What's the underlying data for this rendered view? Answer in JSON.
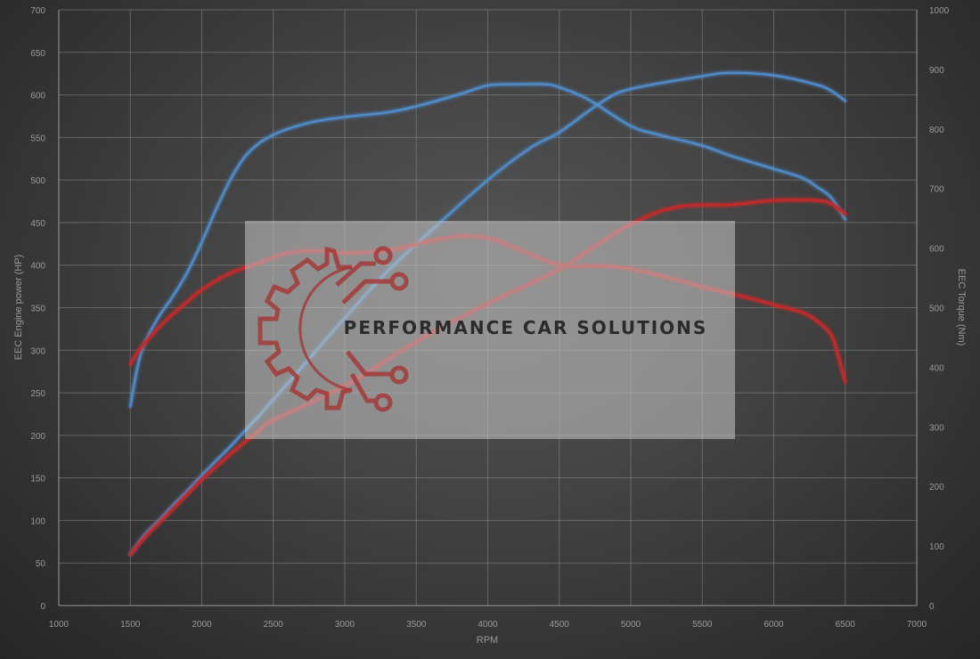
{
  "chart_data": {
    "type": "line",
    "xlabel": "RPM",
    "ylabel_left": "EEC Engine power (HP)",
    "ylabel_right": "EEC Torque (Nm)",
    "xlim": [
      1000,
      7000
    ],
    "ylim_left": [
      0,
      700
    ],
    "ylim_right": [
      0,
      1000
    ],
    "x_ticks": [
      "1000",
      "1500",
      "2000",
      "2500",
      "3000",
      "3500",
      "4000",
      "4500",
      "5000",
      "5500",
      "6000",
      "6500",
      "7000"
    ],
    "y_left_ticks": [
      "0",
      "50",
      "100",
      "150",
      "200",
      "250",
      "300",
      "350",
      "400",
      "450",
      "500",
      "550",
      "600",
      "650",
      "700"
    ],
    "y_right_ticks": [
      "0",
      "100",
      "200",
      "300",
      "400",
      "500",
      "600",
      "700",
      "800",
      "900",
      "1000"
    ],
    "grid": true,
    "colors": {
      "tuned": "#4f8fd0",
      "stock": "#c22a2a"
    },
    "series": [
      {
        "axis": "left",
        "color": "#4f8fd0",
        "x": [
          1500,
          1600,
          1700,
          1800,
          1900,
          2000,
          2100,
          2200,
          2300,
          2400,
          2500,
          2700,
          3000,
          3300,
          3600,
          4000,
          4300,
          4500,
          4800,
          5000,
          5500,
          5700,
          6000,
          6300,
          6400,
          6500
        ],
        "values": [
          60,
          83,
          100,
          118,
          135,
          153,
          170,
          187,
          205,
          223,
          242,
          280,
          338,
          393,
          440,
          500,
          538,
          556,
          592,
          607,
          622,
          626,
          623,
          612,
          605,
          593
        ]
      },
      {
        "axis": "right",
        "color": "#4f8fd0",
        "x": [
          1500,
          1550,
          1600,
          1700,
          1800,
          1900,
          2000,
          2100,
          2200,
          2300,
          2400,
          2500,
          2600,
          2800,
          3000,
          3300,
          3500,
          3800,
          4000,
          4200,
          4400,
          4500,
          4700,
          5000,
          5200,
          5500,
          5700,
          6000,
          6200,
          6300,
          6400,
          6500
        ],
        "values": [
          334,
          400,
          440,
          485,
          520,
          560,
          610,
          665,
          715,
          753,
          776,
          790,
          800,
          813,
          820,
          828,
          838,
          858,
          873,
          875,
          875,
          870,
          850,
          805,
          790,
          772,
          755,
          733,
          718,
          703,
          685,
          648
        ]
      },
      {
        "axis": "left",
        "color": "#c22a2a",
        "x": [
          1500,
          1600,
          1700,
          1800,
          1900,
          2000,
          2100,
          2200,
          2300,
          2400,
          2500,
          3000,
          3500,
          4000,
          4500,
          4800,
          5000,
          5200,
          5400,
          5700,
          6000,
          6300,
          6400,
          6500
        ],
        "values": [
          60,
          80,
          97,
          114,
          131,
          148,
          163,
          178,
          192,
          205,
          218,
          258,
          310,
          355,
          395,
          428,
          448,
          463,
          470,
          471,
          476,
          476,
          472,
          460
        ]
      },
      {
        "axis": "right",
        "color": "#c22a2a",
        "x": [
          1500,
          1550,
          1600,
          1700,
          1800,
          1900,
          2000,
          2200,
          2400,
          2600,
          2800,
          3000,
          3300,
          3600,
          3800,
          4000,
          4200,
          4500,
          4800,
          5000,
          5300,
          5500,
          5800,
          6000,
          6200,
          6300,
          6400,
          6450,
          6500
        ],
        "values": [
          405,
          425,
          440,
          467,
          490,
          510,
          530,
          558,
          575,
          592,
          595,
          592,
          596,
          612,
          620,
          617,
          600,
          572,
          570,
          565,
          548,
          535,
          518,
          505,
          492,
          478,
          455,
          420,
          375
        ]
      }
    ]
  },
  "watermark": {
    "text": "PERFORMANCE CAR SOLUTIONS",
    "logo": "gear-circuit-logo"
  }
}
